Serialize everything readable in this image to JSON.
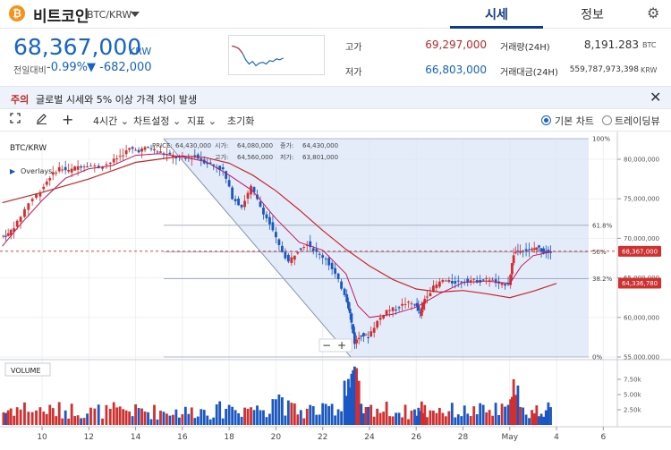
{
  "header": {
    "coin_icon": "bitcoin-icon",
    "coin_glyph": "₿",
    "coin_name": "비트코인",
    "coin_code": "BTC/KRW",
    "tabs": [
      {
        "label": "시세",
        "active": true
      },
      {
        "label": "정보",
        "active": false
      }
    ],
    "settings_icon": "gear-icon"
  },
  "ticker": {
    "price": "68,367,000",
    "unit": "KRW",
    "change_label": "전일대비",
    "change_pct": "-0.99%",
    "change_abs": "▼ -682,000",
    "high_label": "고가",
    "high_value": "69,297,000",
    "low_label": "저가",
    "low_value": "66,803,000",
    "vol_label": "거래량(24H)",
    "vol_value": "8,191.283",
    "vol_unit": "BTC",
    "amt_label": "거래대금(24H)",
    "amt_value": "559,787,973,398",
    "amt_unit": "KRW"
  },
  "notice": {
    "tag": "주의",
    "text": "글로벌 시세와 5% 이상 가격 차이 발생",
    "close_icon": "close-icon"
  },
  "toolbar": {
    "fullscreen_icon": "fullscreen-icon",
    "draw_icon": "pencil-icon",
    "crosshair_icon": "plus-icon",
    "interval": "4시간",
    "chart_settings": "차트설정",
    "indicators": "지표",
    "reset": "초기화",
    "basic_chart": "기본 차트",
    "tradingview": "트레이딩뷰",
    "selected_chart": "기본 차트"
  },
  "chart_data": {
    "type": "candlestick",
    "symbol": "BTC/KRW",
    "overlays_label": "Overlays",
    "ohlc_readout": {
      "price_label": "PRICE:",
      "price": "64,430,000",
      "open_label": "시가:",
      "open": "64,080,000",
      "close_label": "종가:",
      "close": "64,430,000",
      "high_label": "고가:",
      "high": "64,560,000",
      "low_label": "저가:",
      "low": "63,801,000"
    },
    "x_ticks": [
      "10",
      "12",
      "14",
      "16",
      "18",
      "20",
      "22",
      "24",
      "26",
      "28",
      "May",
      "4",
      "6"
    ],
    "x_tick_days": [
      10,
      12,
      14,
      16,
      18,
      20,
      22,
      24,
      26,
      28,
      30,
      32,
      34
    ],
    "x_range_days": [
      8.2,
      34.6
    ],
    "y_ticks": [
      "80,000,000",
      "75,000,000",
      "70,000,000",
      "65,000,000",
      "60,000,000",
      "55,000,000"
    ],
    "y_tick_values": [
      80000000,
      75000000,
      70000000,
      65000000,
      60000000,
      55000000
    ],
    "y_range": [
      55000000,
      82600000
    ],
    "last_price_label": "68,367,000",
    "last_price": 68367000,
    "ma_label": "64,336,780",
    "ma_value": 64336780,
    "fib_levels": [
      {
        "label": "100%",
        "value": 82600000
      },
      {
        "label": "61.8%",
        "value": 71650000
      },
      {
        "label": "50%",
        "value": 68270000
      },
      {
        "label": "38.2%",
        "value": 64890000
      },
      {
        "label": "0%",
        "value": 55000000
      }
    ],
    "fib_anchor": {
      "start_day": 15.2,
      "end_day": 23.2
    },
    "volume_label": "VOLUME",
    "volume_ticks": [
      "7.50k",
      "5.00k",
      "2.50k"
    ],
    "volume_tick_values": [
      7500,
      5000,
      2500
    ],
    "volume_range": [
      0,
      10000
    ],
    "zoom_out_label": "−",
    "zoom_in_label": "+",
    "colors": {
      "up": "#d32f2f",
      "down": "#1a56c4",
      "ma_fast": "#c2185b",
      "ma_slow": "#c62828",
      "fib_fill": "#dbe6f8",
      "fib_line": "#9aa8bd"
    },
    "close_path": [
      [
        8.3,
        70.2
      ],
      [
        8.6,
        70.5
      ],
      [
        9.0,
        72.0
      ],
      [
        9.5,
        74.5
      ],
      [
        10.0,
        76.0
      ],
      [
        10.4,
        77.8
      ],
      [
        10.8,
        78.9
      ],
      [
        11.2,
        78.5
      ],
      [
        11.6,
        79.1
      ],
      [
        12.0,
        79.3
      ],
      [
        12.5,
        79.0
      ],
      [
        13.0,
        79.6
      ],
      [
        13.4,
        80.4
      ],
      [
        13.8,
        81.3
      ],
      [
        14.2,
        81.1
      ],
      [
        14.6,
        81.5
      ],
      [
        15.0,
        81.0
      ],
      [
        15.4,
        80.6
      ],
      [
        15.8,
        80.2
      ],
      [
        16.2,
        80.1
      ],
      [
        16.6,
        80.4
      ],
      [
        17.0,
        79.7
      ],
      [
        17.4,
        79.2
      ],
      [
        17.8,
        78.6
      ],
      [
        18.2,
        75.2
      ],
      [
        18.6,
        74.0
      ],
      [
        19.0,
        76.5
      ],
      [
        19.4,
        74.0
      ],
      [
        19.8,
        71.8
      ],
      [
        20.2,
        69.0
      ],
      [
        20.6,
        67.0
      ],
      [
        21.0,
        68.5
      ],
      [
        21.4,
        69.4
      ],
      [
        21.8,
        68.2
      ],
      [
        22.2,
        67.4
      ],
      [
        22.6,
        65.4
      ],
      [
        23.0,
        63.0
      ],
      [
        23.2,
        60.5
      ],
      [
        23.4,
        56.8
      ],
      [
        23.7,
        57.8
      ],
      [
        24.0,
        57.6
      ],
      [
        24.4,
        59.5
      ],
      [
        24.8,
        60.9
      ],
      [
        25.2,
        61.1
      ],
      [
        25.6,
        61.8
      ],
      [
        26.0,
        61.7
      ],
      [
        26.2,
        60.4
      ],
      [
        26.4,
        62.4
      ],
      [
        26.8,
        63.8
      ],
      [
        27.2,
        64.7
      ],
      [
        27.6,
        64.4
      ],
      [
        28.0,
        64.6
      ],
      [
        28.4,
        64.7
      ],
      [
        28.8,
        64.6
      ],
      [
        29.2,
        64.9
      ],
      [
        29.6,
        64.1
      ],
      [
        30.0,
        64.3
      ],
      [
        30.2,
        68.0
      ],
      [
        30.5,
        68.6
      ],
      [
        30.9,
        68.4
      ],
      [
        31.2,
        68.9
      ],
      [
        31.5,
        68.3
      ],
      [
        31.8,
        68.4
      ]
    ],
    "ma_fast_path": [
      [
        8.3,
        69.0
      ],
      [
        9.0,
        71.5
      ],
      [
        10.0,
        74.8
      ],
      [
        11.0,
        77.6
      ],
      [
        12.0,
        78.8
      ],
      [
        13.0,
        79.2
      ],
      [
        14.0,
        80.5
      ],
      [
        15.0,
        80.7
      ],
      [
        16.0,
        80.3
      ],
      [
        17.0,
        79.7
      ],
      [
        18.0,
        78.0
      ],
      [
        19.0,
        76.0
      ],
      [
        20.0,
        72.5
      ],
      [
        21.0,
        69.5
      ],
      [
        22.0,
        68.5
      ],
      [
        23.0,
        65.5
      ],
      [
        23.5,
        61.5
      ],
      [
        24.0,
        60.0
      ],
      [
        25.0,
        60.4
      ],
      [
        26.0,
        61.3
      ],
      [
        27.0,
        63.0
      ],
      [
        28.0,
        64.4
      ],
      [
        29.0,
        64.6
      ],
      [
        30.0,
        64.3
      ],
      [
        30.5,
        66.5
      ],
      [
        31.0,
        67.8
      ],
      [
        31.8,
        68.3
      ]
    ],
    "ma_slow_path": [
      [
        8.3,
        74.5
      ],
      [
        10.0,
        75.8
      ],
      [
        12.0,
        77.5
      ],
      [
        14.0,
        79.6
      ],
      [
        16.0,
        80.4
      ],
      [
        17.0,
        80.2
      ],
      [
        18.0,
        79.5
      ],
      [
        19.0,
        78.0
      ],
      [
        20.0,
        76.0
      ],
      [
        21.0,
        73.6
      ],
      [
        22.0,
        71.0
      ],
      [
        23.0,
        68.6
      ],
      [
        24.0,
        66.5
      ],
      [
        25.0,
        64.8
      ],
      [
        26.0,
        63.6
      ],
      [
        27.0,
        63.2
      ],
      [
        28.0,
        63.4
      ],
      [
        29.0,
        63.0
      ],
      [
        30.0,
        62.5
      ],
      [
        31.0,
        63.3
      ],
      [
        32.0,
        64.3
      ]
    ]
  }
}
